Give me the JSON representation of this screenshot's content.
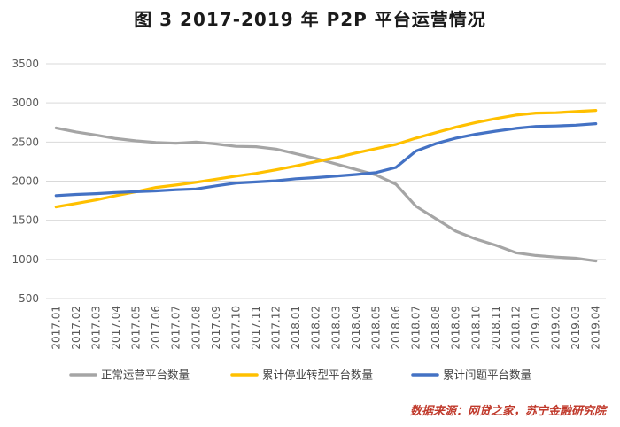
{
  "chart_data": {
    "type": "line",
    "title": "图 3 2017-2019 年 P2P 平台运营情况",
    "xlabel": "",
    "ylabel": "",
    "ylim": [
      500,
      3500
    ],
    "yticks": [
      500,
      1000,
      1500,
      2000,
      2500,
      3000,
      3500
    ],
    "grid": "horizontal",
    "legend_position": "bottom",
    "categories": [
      "2017.01",
      "2017.02",
      "2017.03",
      "2017.04",
      "2017.05",
      "2017.06",
      "2017.07",
      "2017.08",
      "2017.09",
      "2017.10",
      "2017.11",
      "2017.12",
      "2018.01",
      "2018.02",
      "2018.03",
      "2018.04",
      "2018.05",
      "2018.06",
      "2018.07",
      "2018.08",
      "2018.09",
      "2018.10",
      "2018.11",
      "2018.12",
      "2019.01",
      "2019.02",
      "2019.03",
      "2019.04"
    ],
    "series": [
      {
        "name": "正常运营平台数量",
        "color": "#a5a5a5",
        "values": [
          2680,
          2630,
          2590,
          2545,
          2515,
          2495,
          2485,
          2500,
          2475,
          2445,
          2440,
          2410,
          2350,
          2290,
          2220,
          2150,
          2080,
          1960,
          1680,
          1520,
          1360,
          1260,
          1180,
          1085,
          1050,
          1030,
          1015,
          980
        ]
      },
      {
        "name": "累计停业转型平台数量",
        "color": "#ffc000",
        "values": [
          1670,
          1715,
          1760,
          1815,
          1865,
          1920,
          1950,
          1985,
          2025,
          2065,
          2100,
          2145,
          2195,
          2250,
          2300,
          2360,
          2415,
          2470,
          2550,
          2620,
          2690,
          2750,
          2800,
          2845,
          2870,
          2875,
          2890,
          2905
        ]
      },
      {
        "name": "累计问题平台数量",
        "color": "#4472c4",
        "values": [
          1815,
          1830,
          1840,
          1855,
          1865,
          1875,
          1890,
          1900,
          1940,
          1975,
          1990,
          2005,
          2030,
          2045,
          2065,
          2085,
          2110,
          2175,
          2385,
          2480,
          2550,
          2600,
          2640,
          2675,
          2700,
          2705,
          2715,
          2735
        ]
      }
    ]
  },
  "source_note": "数据来源：网贷之家，苏宁金融研究院"
}
